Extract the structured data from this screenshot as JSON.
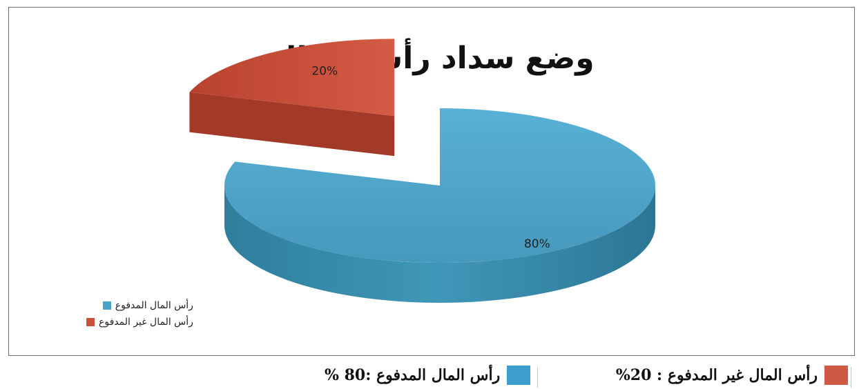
{
  "chart_data": {
    "type": "pie",
    "title": "وضع سداد رأس المال",
    "slices": [
      {
        "name": "رأس المال المدفوع",
        "value": 80,
        "label": "80%",
        "color": "#4aa3c9"
      },
      {
        "name": "رأس المال غير المدفوع",
        "value": 20,
        "label": "20%",
        "color": "#c9503a"
      }
    ],
    "legend_position": "bottom-left",
    "three_d": true
  },
  "bottom_key": {
    "unpaid": {
      "text": "رأس المال غير المدفوع : 20%",
      "color": "#cf5a44"
    },
    "paid": {
      "text": "رأس المال المدفوع :80 %",
      "color": "#3f9fcc"
    }
  }
}
